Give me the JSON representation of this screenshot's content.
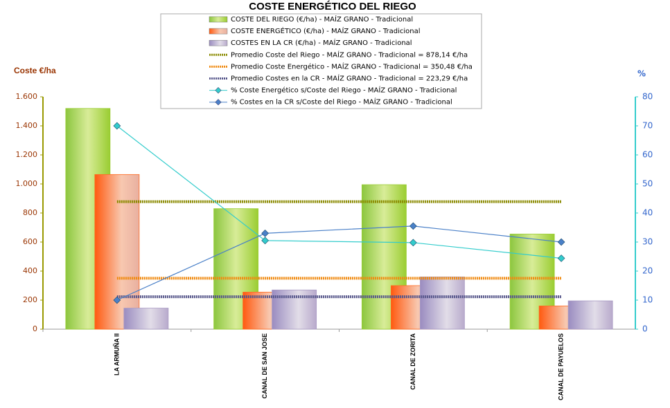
{
  "chart_data": {
    "type": "combo",
    "title": "COSTE ENERGÉTICO DEL RIEGO",
    "y_label": "Coste €/ha",
    "y2_label": "%",
    "categories": [
      "LA ARMUÑA II",
      "CANAL DE SAN JOSE",
      "CANAL DE ZORITA",
      "CANAL DE PAYUELOS"
    ],
    "ylim": [
      0,
      1600
    ],
    "yticks": [
      0,
      200,
      400,
      600,
      800,
      {
        "value": 1000,
        "label": "1.000"
      },
      {
        "value": 1200,
        "label": "1.200"
      },
      {
        "value": 1400,
        "label": "1.400"
      },
      {
        "value": 1600,
        "label": "1.600"
      }
    ],
    "y2lim": [
      0,
      80
    ],
    "y2ticks": [
      0,
      10,
      20,
      30,
      40,
      50,
      60,
      70,
      80
    ],
    "series": [
      {
        "name": "COSTE DEL RIEGO (€/ha) - MAÍZ GRANO - Tradicional",
        "type": "bar",
        "color": "#9acd32",
        "values": [
          1520,
          830,
          995,
          655
        ]
      },
      {
        "name": "COSTE ENERGÉTICO (€/ha) - MAÍZ GRANO - Tradicional",
        "type": "bar",
        "color": "#ff6a20",
        "values": [
          1065,
          255,
          300,
          160
        ]
      },
      {
        "name": "COSTES EN LA CR (€/ha) - MAÍZ GRANO - Tradicional",
        "type": "bar",
        "color": "#a99bc4",
        "values": [
          145,
          270,
          360,
          195
        ]
      },
      {
        "name": "Promedio Coste del Riego - MAÍZ GRANO - Tradicional = 878,14 €/ha",
        "type": "average",
        "color": "#8a8a00",
        "value": 878.14
      },
      {
        "name": "Promedio Coste Energético - MAÍZ GRANO - Tradicional = 350,48 €/ha",
        "type": "average",
        "color": "#f08a10",
        "value": 350.48
      },
      {
        "name": "Promedio Costes en la CR - MAÍZ GRANO - Tradicional = 223,29 €/ha",
        "type": "average",
        "color": "#55558a",
        "value": 223.29
      },
      {
        "name": "% Coste Energético s/Coste del Riego - MAÍZ GRANO - Tradicional",
        "type": "line",
        "axis": "y2",
        "color": "#33cccc",
        "values": [
          70,
          30.5,
          29.8,
          24.4
        ]
      },
      {
        "name": "% Costes en la CR s/Coste del Riego - MAÍZ GRANO - Tradicional",
        "type": "line",
        "axis": "y2",
        "color": "#4a80c8",
        "values": [
          10,
          33,
          35.5,
          30
        ]
      }
    ]
  }
}
